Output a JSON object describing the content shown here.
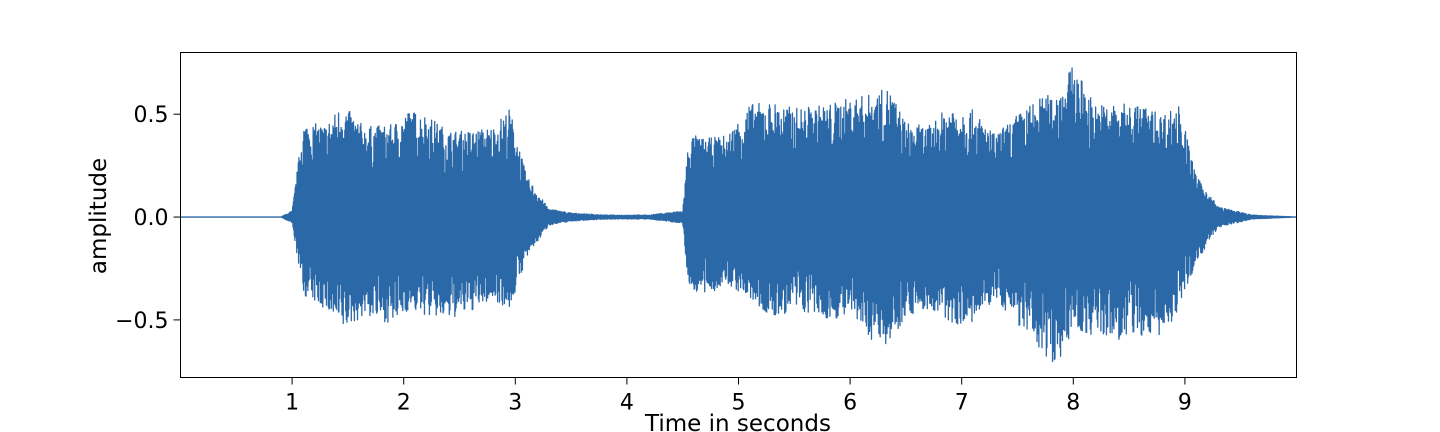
{
  "chart_data": {
    "type": "line",
    "title": "",
    "xlabel": "Time in seconds",
    "ylabel": "amplitude",
    "xlim": [
      0,
      10
    ],
    "ylim": [
      -0.78,
      0.8
    ],
    "xticks": [
      1,
      2,
      3,
      4,
      5,
      6,
      7,
      8,
      9
    ],
    "xtick_labels": [
      "1",
      "2",
      "3",
      "4",
      "5",
      "6",
      "7",
      "8",
      "9"
    ],
    "yticks": [
      -0.5,
      0.0,
      0.5
    ],
    "ytick_labels": [
      "−0.5",
      "0.0",
      "0.5"
    ],
    "grid": false,
    "line_color": "#2b68a8",
    "series": [
      {
        "x": [
          0,
          0.9,
          1.0,
          1.1,
          1.3,
          1.45,
          1.65,
          1.9,
          2.05,
          2.2,
          2.4,
          2.6,
          2.8,
          2.95,
          3.1,
          3.3,
          3.5,
          3.8,
          4.2,
          4.5,
          4.55,
          4.6,
          4.7,
          4.9,
          5.1,
          5.3,
          5.5,
          5.8,
          6.0,
          6.2,
          6.35,
          6.5,
          6.7,
          6.9,
          7.1,
          7.3,
          7.5,
          7.7,
          7.85,
          8.0,
          8.2,
          8.4,
          8.6,
          8.8,
          8.95,
          9.1,
          9.3,
          9.6,
          10.0
        ],
        "y_max": [
          0.0,
          0.0,
          0.03,
          0.46,
          0.45,
          0.55,
          0.44,
          0.45,
          0.52,
          0.5,
          0.42,
          0.42,
          0.44,
          0.53,
          0.2,
          0.04,
          0.02,
          0.01,
          0.01,
          0.03,
          0.37,
          0.4,
          0.38,
          0.4,
          0.55,
          0.56,
          0.53,
          0.55,
          0.58,
          0.6,
          0.63,
          0.46,
          0.44,
          0.55,
          0.52,
          0.4,
          0.5,
          0.58,
          0.61,
          0.74,
          0.55,
          0.55,
          0.55,
          0.5,
          0.55,
          0.2,
          0.05,
          0.01,
          0.0
        ],
        "y_min": [
          0.0,
          0.0,
          -0.03,
          -0.38,
          -0.45,
          -0.55,
          -0.48,
          -0.52,
          -0.45,
          -0.48,
          -0.5,
          -0.46,
          -0.4,
          -0.45,
          -0.2,
          -0.04,
          -0.02,
          -0.01,
          -0.01,
          -0.03,
          -0.33,
          -0.36,
          -0.38,
          -0.33,
          -0.4,
          -0.5,
          -0.45,
          -0.5,
          -0.48,
          -0.6,
          -0.62,
          -0.48,
          -0.45,
          -0.52,
          -0.52,
          -0.4,
          -0.52,
          -0.65,
          -0.72,
          -0.55,
          -0.58,
          -0.6,
          -0.58,
          -0.58,
          -0.45,
          -0.22,
          -0.05,
          -0.01,
          0.0
        ]
      }
    ]
  }
}
